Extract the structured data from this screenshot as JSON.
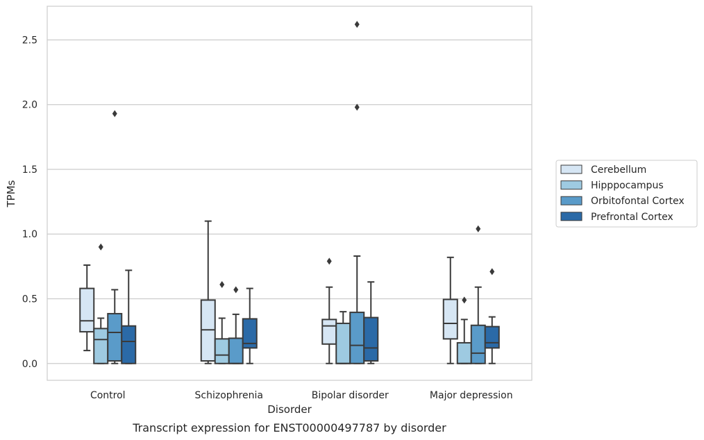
{
  "chart_data": {
    "type": "box",
    "title": "",
    "caption": "Transcript expression for ENST00000497787 by disorder",
    "xlabel": "Disorder",
    "ylabel": "TPMs",
    "ylim": [
      -0.13,
      2.76
    ],
    "yticks": [
      0.0,
      0.5,
      1.0,
      1.5,
      2.0,
      2.5
    ],
    "ytick_labels": [
      "0.0",
      "0.5",
      "1.0",
      "1.5",
      "2.0",
      "2.5"
    ],
    "grid": "horizontal",
    "legend_position": "right",
    "categories": [
      "Control",
      "Schizophrenia",
      "Bipolar disorder",
      "Major depression"
    ],
    "series": [
      {
        "name": "Cerebellum",
        "color": "#d6e6f4",
        "boxes": [
          {
            "low": 0.1,
            "q1": 0.245,
            "median": 0.33,
            "q3": 0.58,
            "high": 0.76,
            "outliers": []
          },
          {
            "low": 0.0,
            "q1": 0.02,
            "median": 0.26,
            "q3": 0.49,
            "high": 1.1,
            "outliers": []
          },
          {
            "low": 0.0,
            "q1": 0.15,
            "median": 0.29,
            "q3": 0.34,
            "high": 0.59,
            "outliers": [
              0.79
            ]
          },
          {
            "low": 0.0,
            "q1": 0.19,
            "median": 0.31,
            "q3": 0.495,
            "high": 0.82,
            "outliers": []
          }
        ]
      },
      {
        "name": "Hipppocampus",
        "color": "#9ecae1",
        "boxes": [
          {
            "low": 0.0,
            "q1": 0.0,
            "median": 0.185,
            "q3": 0.27,
            "high": 0.35,
            "outliers": [
              0.9
            ]
          },
          {
            "low": 0.0,
            "q1": 0.0,
            "median": 0.065,
            "q3": 0.19,
            "high": 0.35,
            "outliers": [
              0.61
            ]
          },
          {
            "low": 0.0,
            "q1": 0.0,
            "median": 0.0,
            "q3": 0.31,
            "high": 0.4,
            "outliers": []
          },
          {
            "low": 0.0,
            "q1": 0.0,
            "median": 0.0,
            "q3": 0.16,
            "high": 0.34,
            "outliers": [
              0.49
            ]
          }
        ]
      },
      {
        "name": "Orbitofontal Cortex",
        "color": "#5a9bc9",
        "boxes": [
          {
            "low": 0.0,
            "q1": 0.02,
            "median": 0.24,
            "q3": 0.385,
            "high": 0.57,
            "outliers": [
              1.93
            ]
          },
          {
            "low": 0.0,
            "q1": 0.0,
            "median": 0.0,
            "q3": 0.195,
            "high": 0.38,
            "outliers": [
              0.57
            ]
          },
          {
            "low": 0.0,
            "q1": 0.0,
            "median": 0.14,
            "q3": 0.395,
            "high": 0.83,
            "outliers": [
              1.98,
              2.62
            ]
          },
          {
            "low": 0.0,
            "q1": 0.0,
            "median": 0.08,
            "q3": 0.295,
            "high": 0.59,
            "outliers": [
              1.04
            ]
          }
        ]
      },
      {
        "name": "Prefrontal Cortex",
        "color": "#2b6aa7",
        "boxes": [
          {
            "low": 0.0,
            "q1": 0.0,
            "median": 0.17,
            "q3": 0.29,
            "high": 0.72,
            "outliers": []
          },
          {
            "low": 0.0,
            "q1": 0.12,
            "median": 0.155,
            "q3": 0.345,
            "high": 0.58,
            "outliers": []
          },
          {
            "low": 0.0,
            "q1": 0.02,
            "median": 0.12,
            "q3": 0.355,
            "high": 0.63,
            "outliers": []
          },
          {
            "low": 0.0,
            "q1": 0.12,
            "median": 0.16,
            "q3": 0.285,
            "high": 0.36,
            "outliers": [
              0.71
            ]
          }
        ]
      }
    ]
  }
}
